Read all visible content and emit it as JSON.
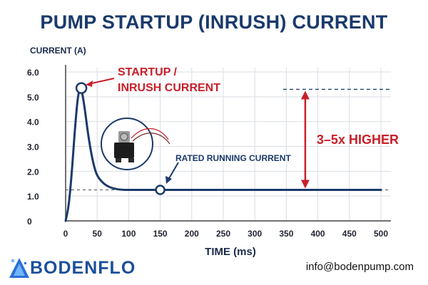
{
  "header": {
    "title": "PUMP STARTUP (INRUSH) CURRENT"
  },
  "chart_data": {
    "type": "line",
    "title": "PUMP STARTUP (INRUSH) CURRENT",
    "xlabel": "TIME (ms)",
    "ylabel": "CURRENT (A)",
    "xlim": [
      0,
      500
    ],
    "ylim": [
      0,
      6
    ],
    "x_ticks": [
      "0",
      "50",
      "100",
      "150",
      "200",
      "250",
      "300",
      "350",
      "400",
      "450",
      "500"
    ],
    "y_ticks": [
      "0",
      "1.0",
      "2.0",
      "3.0",
      "4.0",
      "5.0",
      "6.0"
    ],
    "grid": true,
    "series": [
      {
        "x": [
          0,
          5,
          10,
          15,
          20,
          25,
          30,
          35,
          40,
          45,
          50,
          60,
          70,
          80,
          90,
          100,
          120,
          150,
          200,
          300,
          400,
          500
        ],
        "y": [
          0,
          0.6,
          2.0,
          3.8,
          5.2,
          5.35,
          4.6,
          3.6,
          2.8,
          2.2,
          1.8,
          1.5,
          1.35,
          1.28,
          1.25,
          1.25,
          1.25,
          1.25,
          1.25,
          1.25,
          1.25,
          1.25
        ]
      }
    ],
    "reference_lines": [
      {
        "y": 5.3,
        "style": "dashed"
      },
      {
        "y": 1.25,
        "style": "dashed"
      }
    ],
    "markers": [
      {
        "x": 25,
        "y": 5.35
      },
      {
        "x": 150,
        "y": 1.25
      }
    ],
    "annotations": [
      {
        "text_lines": [
          "STARTUP /",
          "INRUSH CURRENT"
        ],
        "x": 25,
        "y": 5.35
      },
      {
        "text_lines": [
          "RATED RUNNING CURRENT"
        ],
        "x": 150,
        "y": 1.25
      },
      {
        "text_lines": [
          "3–5x HIGHER"
        ],
        "x": 380,
        "y": [
          1.25,
          5.3
        ]
      }
    ]
  },
  "colors": {
    "title": "#1a3a6b",
    "line": "#1a3a6b",
    "accent": "#c8202a",
    "grid": "#d9dde3"
  },
  "footer": {
    "logo": "BODENFLO",
    "logo_icon": "bodenflo-logo-icon",
    "email": "info@bodenpump.com"
  },
  "illustration": {
    "icon": "diaphragm-pump-icon"
  }
}
